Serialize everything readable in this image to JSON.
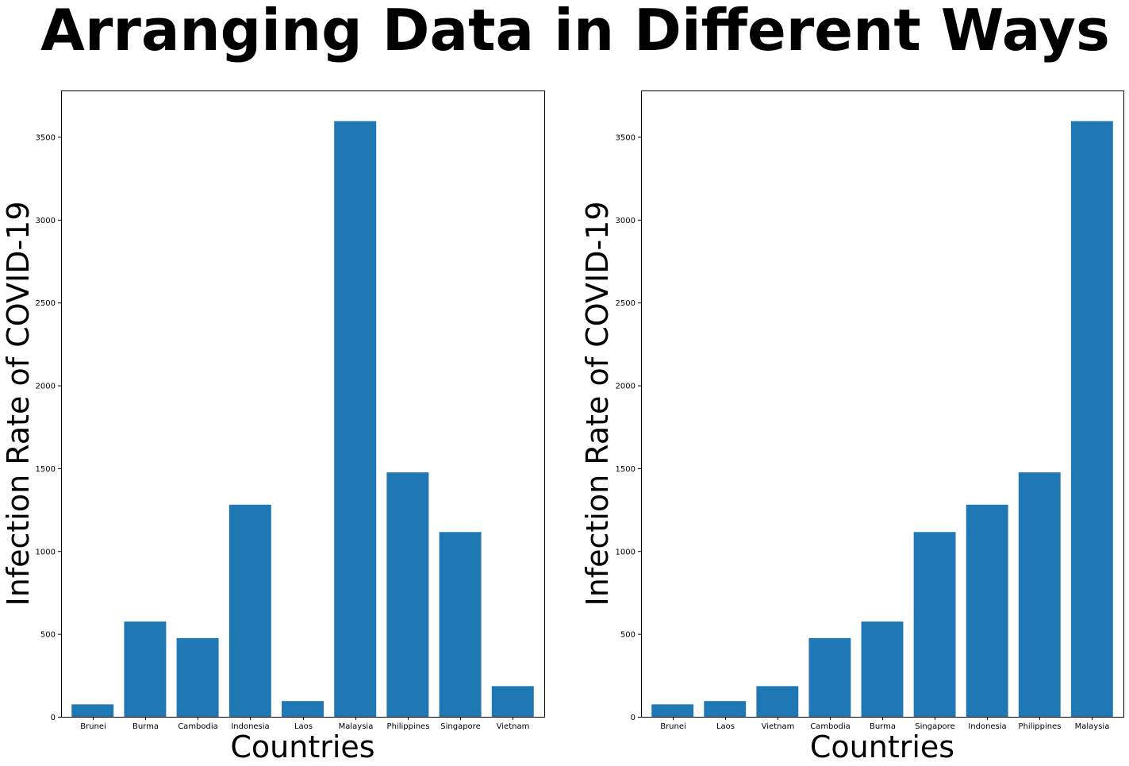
{
  "figure": {
    "title": "Arranging Data in Different Ways"
  },
  "colors": {
    "bar": "#1f77b4",
    "axes": "#000000",
    "background": "#ffffff"
  },
  "chart_data": [
    {
      "type": "bar",
      "title": "",
      "xlabel": "Countries",
      "ylabel": "Infection Rate of COVID-19",
      "categories": [
        "Brunei",
        "Burma",
        "Cambodia",
        "Indonesia",
        "Laos",
        "Malaysia",
        "Philippines",
        "Singapore",
        "Vietnam"
      ],
      "values": [
        75,
        575,
        475,
        1280,
        95,
        3595,
        1475,
        1115,
        185
      ],
      "ylim": [
        0,
        3780
      ],
      "yticks": [
        0,
        500,
        1000,
        1500,
        2000,
        2500,
        3000,
        3500
      ],
      "grid": false
    },
    {
      "type": "bar",
      "title": "",
      "xlabel": "Countries",
      "ylabel": "Infection Rate of COVID-19",
      "categories": [
        "Brunei",
        "Laos",
        "Vietnam",
        "Cambodia",
        "Burma",
        "Singapore",
        "Indonesia",
        "Philippines",
        "Malaysia"
      ],
      "values": [
        75,
        95,
        185,
        475,
        575,
        1115,
        1280,
        1475,
        3595
      ],
      "ylim": [
        0,
        3780
      ],
      "yticks": [
        0,
        500,
        1000,
        1500,
        2000,
        2500,
        3000,
        3500
      ],
      "grid": false
    }
  ]
}
